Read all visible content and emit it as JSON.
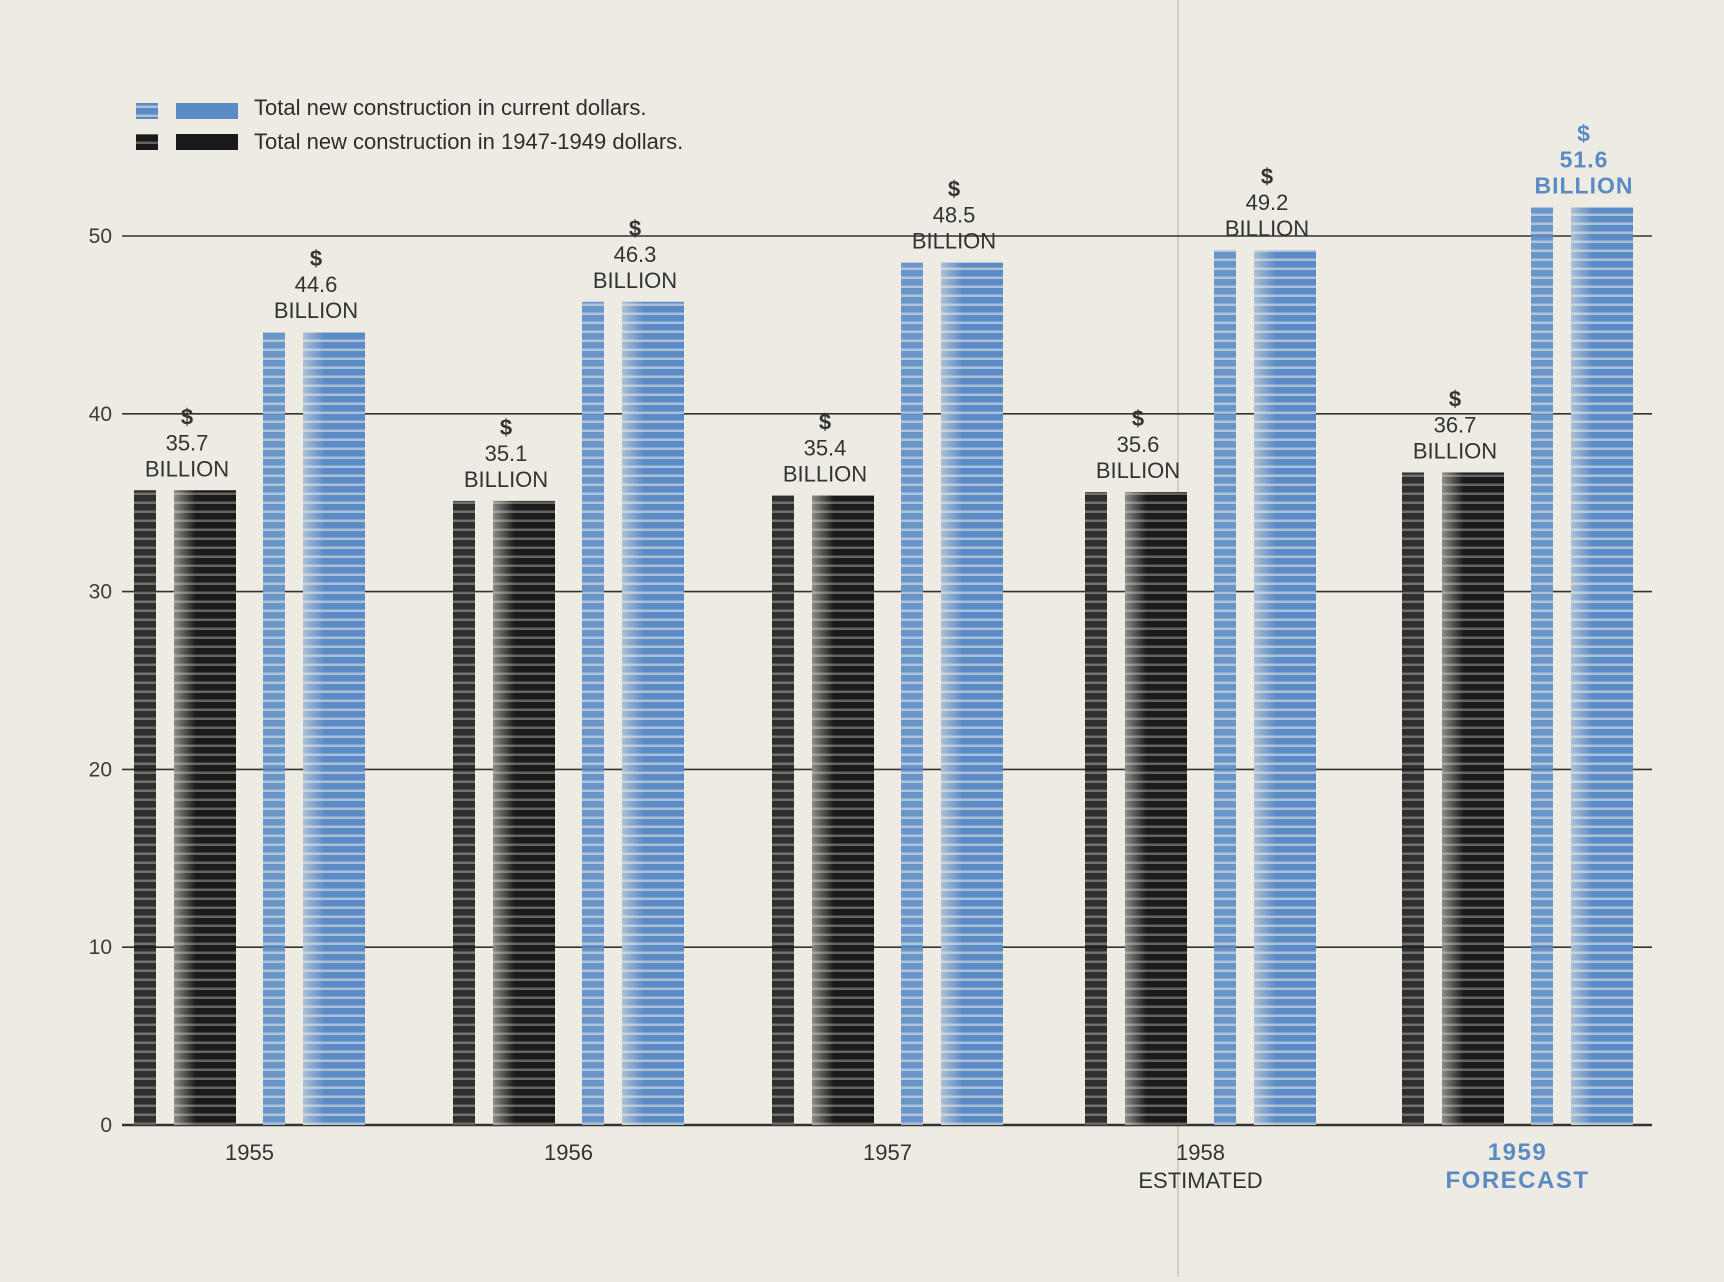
{
  "colors": {
    "background": "#eeebe2",
    "current_dollars": "#5b8bc6",
    "constant_dollars": "#1a1a1a",
    "gridline": "#333333",
    "forecast_text": "#5b8bc6"
  },
  "legend": {
    "items": [
      {
        "label": "Total new construction in current dollars.",
        "color": "#5b8bc6"
      },
      {
        "label": "Total new construction in 1947-1949 dollars.",
        "color": "#1a1a1a"
      }
    ]
  },
  "chart_data": {
    "type": "bar",
    "title": "",
    "xlabel": "",
    "ylabel": "",
    "ylim": [
      0,
      52
    ],
    "yticks": [
      0,
      10,
      20,
      30,
      40,
      50
    ],
    "grid": true,
    "legend_position": "top-left",
    "categories": [
      {
        "line1": "1955",
        "line2": ""
      },
      {
        "line1": "1956",
        "line2": ""
      },
      {
        "line1": "1957",
        "line2": ""
      },
      {
        "line1": "1958",
        "line2": "ESTIMATED"
      },
      {
        "line1": "1959",
        "line2": "FORECAST",
        "highlight": true
      }
    ],
    "series": [
      {
        "name": "Total new construction in 1947-1949 dollars.",
        "color": "#1a1a1a",
        "values": [
          35.7,
          35.1,
          35.4,
          35.6,
          36.7
        ],
        "labels": [
          [
            "$",
            "35.7",
            "BILLION"
          ],
          [
            "$",
            "35.1",
            "BILLION"
          ],
          [
            "$",
            "35.4",
            "BILLION"
          ],
          [
            "$",
            "35.6",
            "BILLION"
          ],
          [
            "$",
            "36.7",
            "BILLION"
          ]
        ]
      },
      {
        "name": "Total new construction in current dollars.",
        "color": "#5b8bc6",
        "values": [
          44.6,
          46.3,
          48.5,
          49.2,
          51.6
        ],
        "labels": [
          [
            "$",
            "44.6",
            "BILLION"
          ],
          [
            "$",
            "46.3",
            "BILLION"
          ],
          [
            "$",
            "48.5",
            "BILLION"
          ],
          [
            "$",
            "49.2",
            "BILLION"
          ],
          [
            "$",
            "51.6",
            "BILLION"
          ]
        ]
      }
    ]
  }
}
